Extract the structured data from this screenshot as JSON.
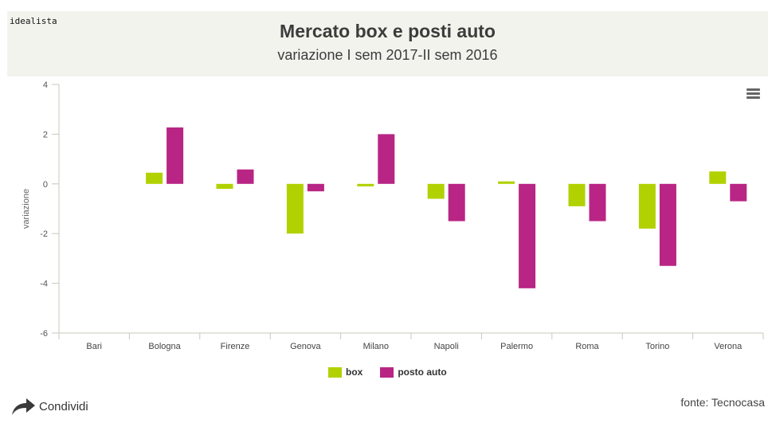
{
  "header": {
    "brand": "idealista",
    "title": "Mercato box e posti auto",
    "subtitle": "variazione I sem 2017-II sem 2016"
  },
  "menu_icon": "hamburger-menu-icon",
  "colors": {
    "box": "#b2d100",
    "posto_auto": "#b82584",
    "header_bg": "#f3f3ee",
    "axis": "#c8c8bc"
  },
  "chart_data": {
    "type": "bar",
    "title": "Mercato box e posti auto",
    "subtitle": "variazione I sem 2017-II sem 2016",
    "xlabel": "",
    "ylabel": "variazione",
    "ylim": [
      -6,
      4
    ],
    "yticks": [
      4,
      2,
      0,
      -2,
      -4,
      -6
    ],
    "grid": false,
    "legend_position": "bottom",
    "categories": [
      "Bari",
      "Bologna",
      "Firenze",
      "Genova",
      "Milano",
      "Napoli",
      "Palermo",
      "Roma",
      "Torino",
      "Verona"
    ],
    "series": [
      {
        "name": "box",
        "color": "#b2d100",
        "values": [
          null,
          0.45,
          -0.2,
          -2.0,
          -0.1,
          -0.6,
          0.1,
          -0.9,
          -1.8,
          0.5
        ]
      },
      {
        "name": "posto auto",
        "color": "#b82584",
        "values": [
          null,
          2.27,
          0.58,
          -0.3,
          2.0,
          -1.5,
          -4.2,
          -1.5,
          -3.3,
          -0.7
        ]
      }
    ]
  },
  "legend": {
    "items": [
      {
        "label": "box"
      },
      {
        "label": "posto auto"
      }
    ]
  },
  "footer": {
    "share_label": "Condividi",
    "share_icon": "share-arrow-icon",
    "source": "fonte: Tecnocasa"
  }
}
